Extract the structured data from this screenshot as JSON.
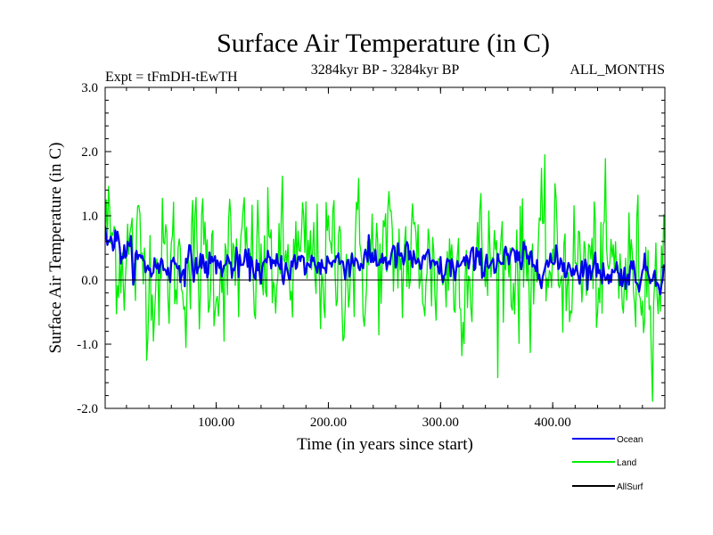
{
  "chart_data": {
    "type": "line",
    "title": "Surface Air Temperature (in C)",
    "subtitle_left": "Expt = tFmDH-tEwTH",
    "subtitle_center": "3284kyr BP - 3284kyr BP",
    "subtitle_right": "ALL_MONTHS",
    "xlabel": "Time (in years since start)",
    "ylabel": "Surface Air Temperature (in C)",
    "xlim": [
      1,
      500
    ],
    "ylim": [
      -2.0,
      3.0
    ],
    "x_ticks": [
      {
        "value": 100,
        "label": "100.00"
      },
      {
        "value": 200,
        "label": "200.00"
      },
      {
        "value": 300,
        "label": "300.00"
      },
      {
        "value": 400,
        "label": "400.00"
      }
    ],
    "y_ticks": [
      {
        "value": -2.0,
        "label": "-2.0"
      },
      {
        "value": -1.0,
        "label": "-1.0"
      },
      {
        "value": 0.0,
        "label": "0.0"
      },
      {
        "value": 1.0,
        "label": "1.0"
      },
      {
        "value": 2.0,
        "label": "2.0"
      },
      {
        "value": 3.0,
        "label": "3.0"
      }
    ],
    "zero_line": 0.0,
    "series": [
      {
        "name": "Land",
        "color": "#00ee00",
        "n_points": 500,
        "mean_profile": [
          [
            1,
            0.8
          ],
          [
            10,
            0.55
          ],
          [
            20,
            0.4
          ],
          [
            40,
            0.2
          ],
          [
            80,
            0.25
          ],
          [
            150,
            0.2
          ],
          [
            220,
            0.3
          ],
          [
            270,
            0.35
          ],
          [
            300,
            0.15
          ],
          [
            340,
            0.3
          ],
          [
            380,
            0.3
          ],
          [
            420,
            0.2
          ],
          [
            460,
            0.1
          ],
          [
            500,
            0.1
          ]
        ],
        "noise_amplitude": 0.55
      },
      {
        "name": "Ocean",
        "color": "#0000ee",
        "n_points": 500,
        "mean_profile": [
          [
            1,
            0.8
          ],
          [
            10,
            0.6
          ],
          [
            20,
            0.4
          ],
          [
            40,
            0.2
          ],
          [
            80,
            0.25
          ],
          [
            150,
            0.2
          ],
          [
            220,
            0.3
          ],
          [
            270,
            0.35
          ],
          [
            300,
            0.15
          ],
          [
            340,
            0.3
          ],
          [
            380,
            0.3
          ],
          [
            420,
            0.2
          ],
          [
            460,
            0.1
          ],
          [
            500,
            0.1
          ]
        ],
        "noise_amplitude": 0.12
      },
      {
        "name": "AllSurf",
        "color": "#000000",
        "n_points": 0,
        "values": []
      }
    ],
    "legend": [
      {
        "name": "Ocean",
        "color": "#0000ee"
      },
      {
        "name": "Land",
        "color": "#00ee00"
      },
      {
        "name": "AllSurf",
        "color": "#000000"
      }
    ],
    "legend_position": "bottom-right"
  }
}
